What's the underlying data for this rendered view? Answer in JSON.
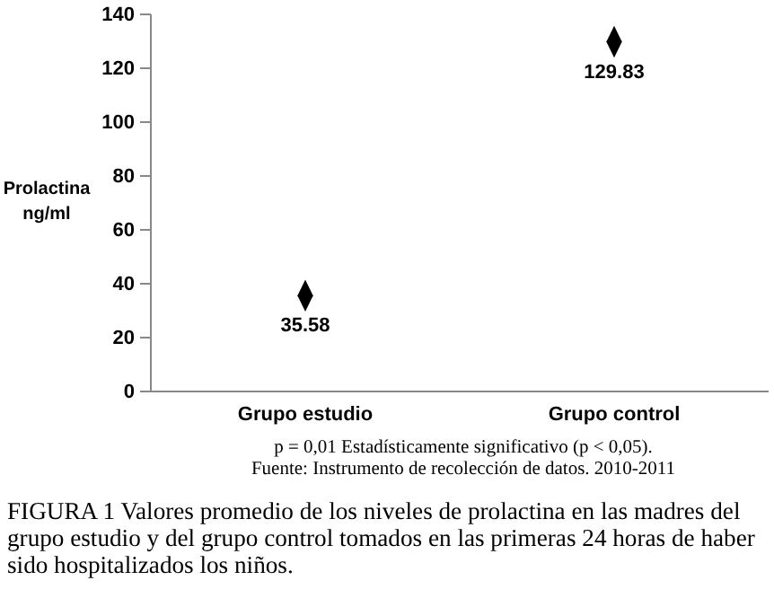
{
  "chart_data": {
    "type": "scatter",
    "categories": [
      "Grupo estudio",
      "Grupo control"
    ],
    "values": [
      35.58,
      129.83
    ],
    "color": "#000000",
    "marker": "diamond",
    "data_labels": true,
    "ylabel": "Prolactina ng/ml",
    "ylim": [
      0,
      140
    ],
    "yticks": [
      0,
      20,
      40,
      60,
      80,
      100,
      120,
      140
    ],
    "grid": false,
    "annotations": [
      "p = 0,01  Estadísticamente significativo (p < 0,05).",
      "Fuente: Instrumento de recolección de datos. 2010-2011",
      "FIGURA 1  Valores promedio de los niveles de prolactina en las madres del grupo estudio y del grupo control tomados en las primeras 24 horas de haber sido hospitalizados los niños."
    ]
  }
}
